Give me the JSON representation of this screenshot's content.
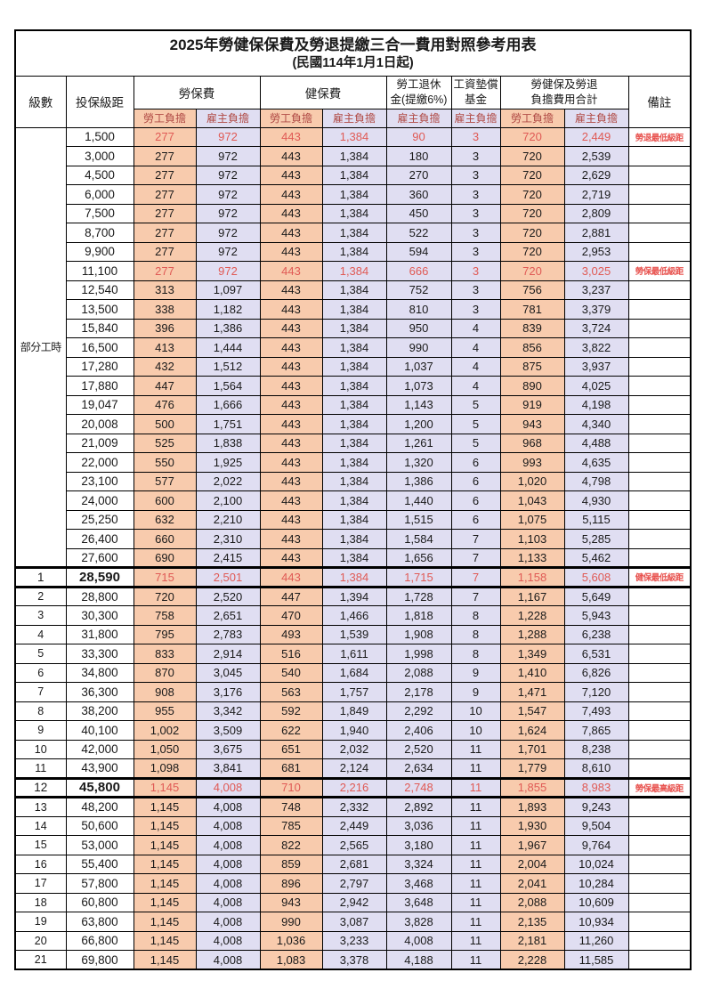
{
  "title": "2025年勞健保保費及勞退提繳三合一費用對照參考用表",
  "subtitle": "(民國114年1月1日起)",
  "colors": {
    "labor_self_bg": "#F8CBAD",
    "employer_bg": "#E0DEF2",
    "highlight_red": "#E05A55",
    "subheader_red": "#B04A45",
    "note_red": "#E8524E"
  },
  "header": {
    "level": "級數",
    "bracket": "投保級距",
    "labor_group": "勞保費",
    "health_group": "健保費",
    "pension_line1": "勞工退休",
    "pension_line2": "金(提繳6%)",
    "wage_line1": "工資墊償",
    "wage_line2": "基金",
    "total_line1": "勞健保及勞退",
    "total_line2": "負擔費用合計",
    "note": "備註",
    "self": "勞工負擔",
    "emp": "雇主負擔"
  },
  "table": {
    "part_time_label": "部分工時",
    "part_time_rowspan": 23,
    "rows": [
      {
        "level": "",
        "bracket": "1,500",
        "labor_self": "277",
        "labor_emp": "972",
        "health_self": "443",
        "health_emp": "1,384",
        "pension": "90",
        "wage": "3",
        "total_self": "720",
        "total_emp": "2,449",
        "note": "勞退最低級距",
        "red": true,
        "thick": false
      },
      {
        "level": "",
        "bracket": "3,000",
        "labor_self": "277",
        "labor_emp": "972",
        "health_self": "443",
        "health_emp": "1,384",
        "pension": "180",
        "wage": "3",
        "total_self": "720",
        "total_emp": "2,539",
        "note": "",
        "red": false,
        "thick": false
      },
      {
        "level": "",
        "bracket": "4,500",
        "labor_self": "277",
        "labor_emp": "972",
        "health_self": "443",
        "health_emp": "1,384",
        "pension": "270",
        "wage": "3",
        "total_self": "720",
        "total_emp": "2,629",
        "note": "",
        "red": false,
        "thick": false
      },
      {
        "level": "",
        "bracket": "6,000",
        "labor_self": "277",
        "labor_emp": "972",
        "health_self": "443",
        "health_emp": "1,384",
        "pension": "360",
        "wage": "3",
        "total_self": "720",
        "total_emp": "2,719",
        "note": "",
        "red": false,
        "thick": false
      },
      {
        "level": "",
        "bracket": "7,500",
        "labor_self": "277",
        "labor_emp": "972",
        "health_self": "443",
        "health_emp": "1,384",
        "pension": "450",
        "wage": "3",
        "total_self": "720",
        "total_emp": "2,809",
        "note": "",
        "red": false,
        "thick": false
      },
      {
        "level": "",
        "bracket": "8,700",
        "labor_self": "277",
        "labor_emp": "972",
        "health_self": "443",
        "health_emp": "1,384",
        "pension": "522",
        "wage": "3",
        "total_self": "720",
        "total_emp": "2,881",
        "note": "",
        "red": false,
        "thick": false
      },
      {
        "level": "",
        "bracket": "9,900",
        "labor_self": "277",
        "labor_emp": "972",
        "health_self": "443",
        "health_emp": "1,384",
        "pension": "594",
        "wage": "3",
        "total_self": "720",
        "total_emp": "2,953",
        "note": "",
        "red": false,
        "thick": false
      },
      {
        "level": "",
        "bracket": "11,100",
        "labor_self": "277",
        "labor_emp": "972",
        "health_self": "443",
        "health_emp": "1,384",
        "pension": "666",
        "wage": "3",
        "total_self": "720",
        "total_emp": "3,025",
        "note": "勞保最低級距",
        "red": true,
        "thick": false
      },
      {
        "level": "",
        "bracket": "12,540",
        "labor_self": "313",
        "labor_emp": "1,097",
        "health_self": "443",
        "health_emp": "1,384",
        "pension": "752",
        "wage": "3",
        "total_self": "756",
        "total_emp": "3,237",
        "note": "",
        "red": false,
        "thick": false
      },
      {
        "level": "",
        "bracket": "13,500",
        "labor_self": "338",
        "labor_emp": "1,182",
        "health_self": "443",
        "health_emp": "1,384",
        "pension": "810",
        "wage": "3",
        "total_self": "781",
        "total_emp": "3,379",
        "note": "",
        "red": false,
        "thick": false
      },
      {
        "level": "",
        "bracket": "15,840",
        "labor_self": "396",
        "labor_emp": "1,386",
        "health_self": "443",
        "health_emp": "1,384",
        "pension": "950",
        "wage": "4",
        "total_self": "839",
        "total_emp": "3,724",
        "note": "",
        "red": false,
        "thick": false
      },
      {
        "level": "",
        "bracket": "16,500",
        "labor_self": "413",
        "labor_emp": "1,444",
        "health_self": "443",
        "health_emp": "1,384",
        "pension": "990",
        "wage": "4",
        "total_self": "856",
        "total_emp": "3,822",
        "note": "",
        "red": false,
        "thick": false
      },
      {
        "level": "",
        "bracket": "17,280",
        "labor_self": "432",
        "labor_emp": "1,512",
        "health_self": "443",
        "health_emp": "1,384",
        "pension": "1,037",
        "wage": "4",
        "total_self": "875",
        "total_emp": "3,937",
        "note": "",
        "red": false,
        "thick": false
      },
      {
        "level": "",
        "bracket": "17,880",
        "labor_self": "447",
        "labor_emp": "1,564",
        "health_self": "443",
        "health_emp": "1,384",
        "pension": "1,073",
        "wage": "4",
        "total_self": "890",
        "total_emp": "4,025",
        "note": "",
        "red": false,
        "thick": false
      },
      {
        "level": "",
        "bracket": "19,047",
        "labor_self": "476",
        "labor_emp": "1,666",
        "health_self": "443",
        "health_emp": "1,384",
        "pension": "1,143",
        "wage": "5",
        "total_self": "919",
        "total_emp": "4,198",
        "note": "",
        "red": false,
        "thick": false
      },
      {
        "level": "",
        "bracket": "20,008",
        "labor_self": "500",
        "labor_emp": "1,751",
        "health_self": "443",
        "health_emp": "1,384",
        "pension": "1,200",
        "wage": "5",
        "total_self": "943",
        "total_emp": "4,340",
        "note": "",
        "red": false,
        "thick": false
      },
      {
        "level": "",
        "bracket": "21,009",
        "labor_self": "525",
        "labor_emp": "1,838",
        "health_self": "443",
        "health_emp": "1,384",
        "pension": "1,261",
        "wage": "5",
        "total_self": "968",
        "total_emp": "4,488",
        "note": "",
        "red": false,
        "thick": false
      },
      {
        "level": "",
        "bracket": "22,000",
        "labor_self": "550",
        "labor_emp": "1,925",
        "health_self": "443",
        "health_emp": "1,384",
        "pension": "1,320",
        "wage": "6",
        "total_self": "993",
        "total_emp": "4,635",
        "note": "",
        "red": false,
        "thick": false
      },
      {
        "level": "",
        "bracket": "23,100",
        "labor_self": "577",
        "labor_emp": "2,022",
        "health_self": "443",
        "health_emp": "1,384",
        "pension": "1,386",
        "wage": "6",
        "total_self": "1,020",
        "total_emp": "4,798",
        "note": "",
        "red": false,
        "thick": false
      },
      {
        "level": "",
        "bracket": "24,000",
        "labor_self": "600",
        "labor_emp": "2,100",
        "health_self": "443",
        "health_emp": "1,384",
        "pension": "1,440",
        "wage": "6",
        "total_self": "1,043",
        "total_emp": "4,930",
        "note": "",
        "red": false,
        "thick": false
      },
      {
        "level": "",
        "bracket": "25,250",
        "labor_self": "632",
        "labor_emp": "2,210",
        "health_self": "443",
        "health_emp": "1,384",
        "pension": "1,515",
        "wage": "6",
        "total_self": "1,075",
        "total_emp": "5,115",
        "note": "",
        "red": false,
        "thick": false
      },
      {
        "level": "",
        "bracket": "26,400",
        "labor_self": "660",
        "labor_emp": "2,310",
        "health_self": "443",
        "health_emp": "1,384",
        "pension": "1,584",
        "wage": "7",
        "total_self": "1,103",
        "total_emp": "5,285",
        "note": "",
        "red": false,
        "thick": false
      },
      {
        "level": "",
        "bracket": "27,600",
        "labor_self": "690",
        "labor_emp": "2,415",
        "health_self": "443",
        "health_emp": "1,384",
        "pension": "1,656",
        "wage": "7",
        "total_self": "1,133",
        "total_emp": "5,462",
        "note": "",
        "red": false,
        "thick": false
      },
      {
        "level": "1",
        "bracket": "28,590",
        "labor_self": "715",
        "labor_emp": "2,501",
        "health_self": "443",
        "health_emp": "1,384",
        "pension": "1,715",
        "wage": "7",
        "total_self": "1,158",
        "total_emp": "5,608",
        "note": "健保最低級距",
        "red": true,
        "thick": true
      },
      {
        "level": "2",
        "bracket": "28,800",
        "labor_self": "720",
        "labor_emp": "2,520",
        "health_self": "447",
        "health_emp": "1,394",
        "pension": "1,728",
        "wage": "7",
        "total_self": "1,167",
        "total_emp": "5,649",
        "note": "",
        "red": false,
        "thick": false
      },
      {
        "level": "3",
        "bracket": "30,300",
        "labor_self": "758",
        "labor_emp": "2,651",
        "health_self": "470",
        "health_emp": "1,466",
        "pension": "1,818",
        "wage": "8",
        "total_self": "1,228",
        "total_emp": "5,943",
        "note": "",
        "red": false,
        "thick": false
      },
      {
        "level": "4",
        "bracket": "31,800",
        "labor_self": "795",
        "labor_emp": "2,783",
        "health_self": "493",
        "health_emp": "1,539",
        "pension": "1,908",
        "wage": "8",
        "total_self": "1,288",
        "total_emp": "6,238",
        "note": "",
        "red": false,
        "thick": false
      },
      {
        "level": "5",
        "bracket": "33,300",
        "labor_self": "833",
        "labor_emp": "2,914",
        "health_self": "516",
        "health_emp": "1,611",
        "pension": "1,998",
        "wage": "8",
        "total_self": "1,349",
        "total_emp": "6,531",
        "note": "",
        "red": false,
        "thick": false
      },
      {
        "level": "6",
        "bracket": "34,800",
        "labor_self": "870",
        "labor_emp": "3,045",
        "health_self": "540",
        "health_emp": "1,684",
        "pension": "2,088",
        "wage": "9",
        "total_self": "1,410",
        "total_emp": "6,826",
        "note": "",
        "red": false,
        "thick": false
      },
      {
        "level": "7",
        "bracket": "36,300",
        "labor_self": "908",
        "labor_emp": "3,176",
        "health_self": "563",
        "health_emp": "1,757",
        "pension": "2,178",
        "wage": "9",
        "total_self": "1,471",
        "total_emp": "7,120",
        "note": "",
        "red": false,
        "thick": false
      },
      {
        "level": "8",
        "bracket": "38,200",
        "labor_self": "955",
        "labor_emp": "3,342",
        "health_self": "592",
        "health_emp": "1,849",
        "pension": "2,292",
        "wage": "10",
        "total_self": "1,547",
        "total_emp": "7,493",
        "note": "",
        "red": false,
        "thick": false
      },
      {
        "level": "9",
        "bracket": "40,100",
        "labor_self": "1,002",
        "labor_emp": "3,509",
        "health_self": "622",
        "health_emp": "1,940",
        "pension": "2,406",
        "wage": "10",
        "total_self": "1,624",
        "total_emp": "7,865",
        "note": "",
        "red": false,
        "thick": false
      },
      {
        "level": "10",
        "bracket": "42,000",
        "labor_self": "1,050",
        "labor_emp": "3,675",
        "health_self": "651",
        "health_emp": "2,032",
        "pension": "2,520",
        "wage": "11",
        "total_self": "1,701",
        "total_emp": "8,238",
        "note": "",
        "red": false,
        "thick": false
      },
      {
        "level": "11",
        "bracket": "43,900",
        "labor_self": "1,098",
        "labor_emp": "3,841",
        "health_self": "681",
        "health_emp": "2,124",
        "pension": "2,634",
        "wage": "11",
        "total_self": "1,779",
        "total_emp": "8,610",
        "note": "",
        "red": false,
        "thick": false
      },
      {
        "level": "12",
        "bracket": "45,800",
        "labor_self": "1,145",
        "labor_emp": "4,008",
        "health_self": "710",
        "health_emp": "2,216",
        "pension": "2,748",
        "wage": "11",
        "total_self": "1,855",
        "total_emp": "8,983",
        "note": "勞保最高級距",
        "red": true,
        "thick": true
      },
      {
        "level": "13",
        "bracket": "48,200",
        "labor_self": "1,145",
        "labor_emp": "4,008",
        "health_self": "748",
        "health_emp": "2,332",
        "pension": "2,892",
        "wage": "11",
        "total_self": "1,893",
        "total_emp": "9,243",
        "note": "",
        "red": false,
        "thick": false
      },
      {
        "level": "14",
        "bracket": "50,600",
        "labor_self": "1,145",
        "labor_emp": "4,008",
        "health_self": "785",
        "health_emp": "2,449",
        "pension": "3,036",
        "wage": "11",
        "total_self": "1,930",
        "total_emp": "9,504",
        "note": "",
        "red": false,
        "thick": false
      },
      {
        "level": "15",
        "bracket": "53,000",
        "labor_self": "1,145",
        "labor_emp": "4,008",
        "health_self": "822",
        "health_emp": "2,565",
        "pension": "3,180",
        "wage": "11",
        "total_self": "1,967",
        "total_emp": "9,764",
        "note": "",
        "red": false,
        "thick": false
      },
      {
        "level": "16",
        "bracket": "55,400",
        "labor_self": "1,145",
        "labor_emp": "4,008",
        "health_self": "859",
        "health_emp": "2,681",
        "pension": "3,324",
        "wage": "11",
        "total_self": "2,004",
        "total_emp": "10,024",
        "note": "",
        "red": false,
        "thick": false
      },
      {
        "level": "17",
        "bracket": "57,800",
        "labor_self": "1,145",
        "labor_emp": "4,008",
        "health_self": "896",
        "health_emp": "2,797",
        "pension": "3,468",
        "wage": "11",
        "total_self": "2,041",
        "total_emp": "10,284",
        "note": "",
        "red": false,
        "thick": false
      },
      {
        "level": "18",
        "bracket": "60,800",
        "labor_self": "1,145",
        "labor_emp": "4,008",
        "health_self": "943",
        "health_emp": "2,942",
        "pension": "3,648",
        "wage": "11",
        "total_self": "2,088",
        "total_emp": "10,609",
        "note": "",
        "red": false,
        "thick": false
      },
      {
        "level": "19",
        "bracket": "63,800",
        "labor_self": "1,145",
        "labor_emp": "4,008",
        "health_self": "990",
        "health_emp": "3,087",
        "pension": "3,828",
        "wage": "11",
        "total_self": "2,135",
        "total_emp": "10,934",
        "note": "",
        "red": false,
        "thick": false
      },
      {
        "level": "20",
        "bracket": "66,800",
        "labor_self": "1,145",
        "labor_emp": "4,008",
        "health_self": "1,036",
        "health_emp": "3,233",
        "pension": "4,008",
        "wage": "11",
        "total_self": "2,181",
        "total_emp": "11,260",
        "note": "",
        "red": false,
        "thick": false
      },
      {
        "level": "21",
        "bracket": "69,800",
        "labor_self": "1,145",
        "labor_emp": "4,008",
        "health_self": "1,083",
        "health_emp": "3,378",
        "pension": "4,188",
        "wage": "11",
        "total_self": "2,228",
        "total_emp": "11,585",
        "note": "",
        "red": false,
        "thick": false
      }
    ]
  }
}
